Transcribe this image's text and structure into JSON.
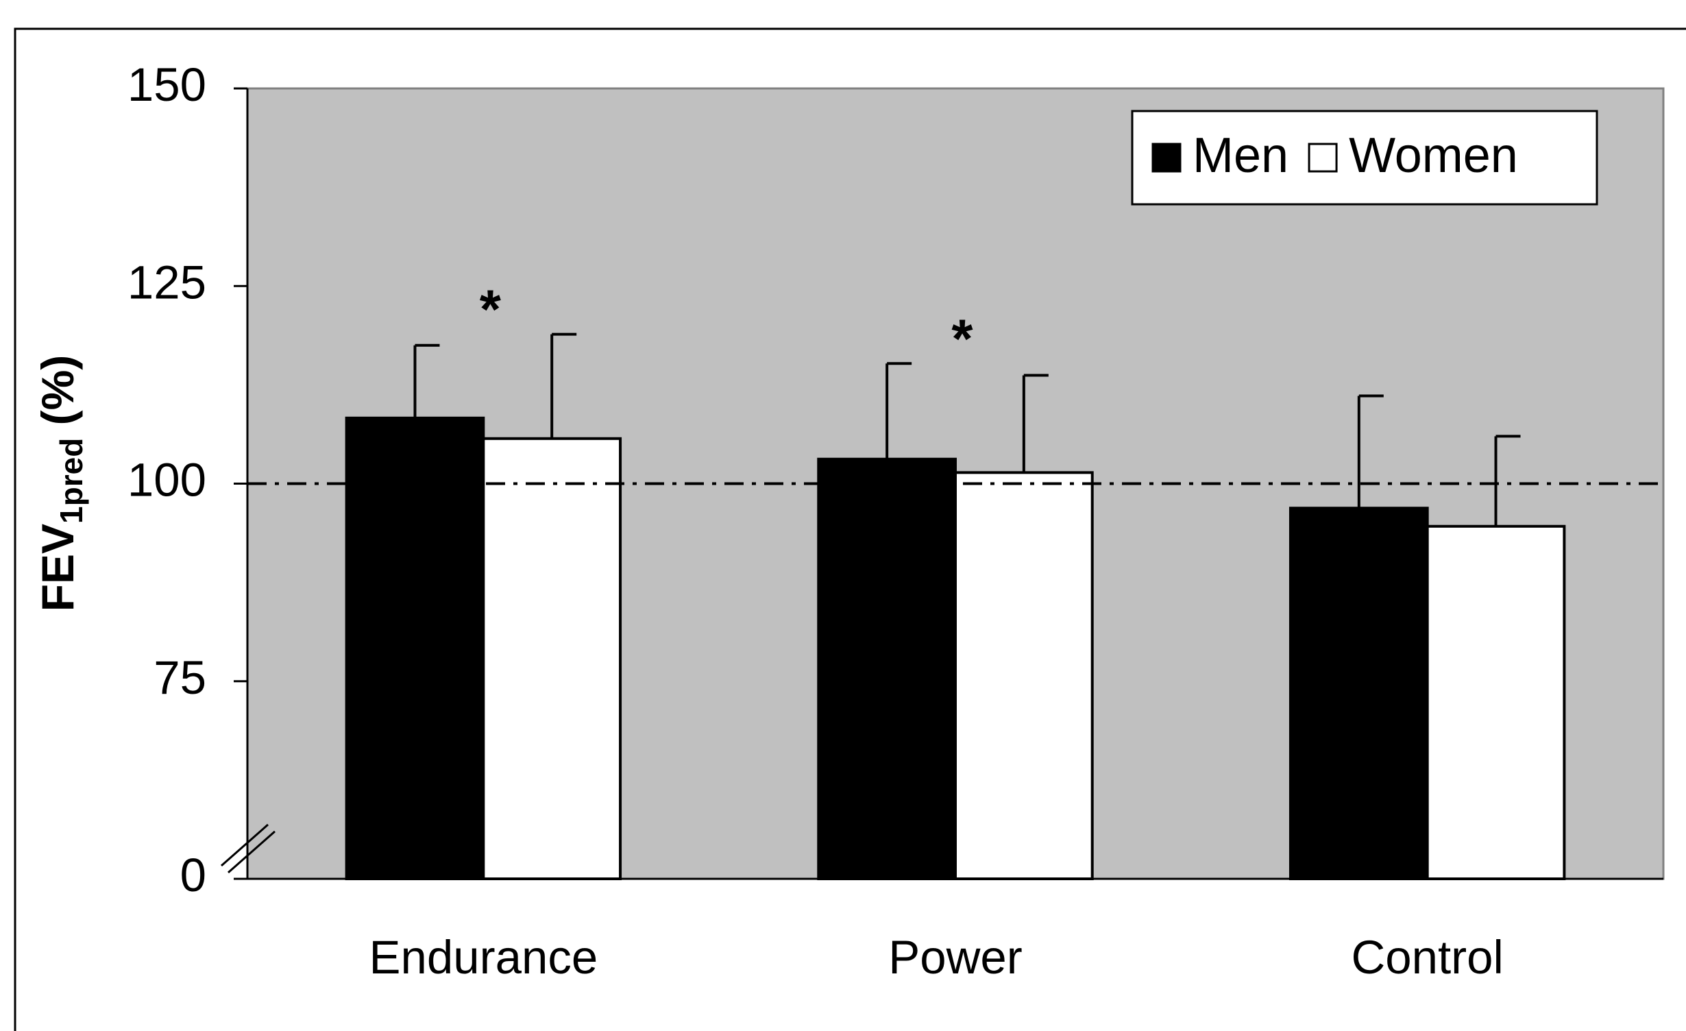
{
  "chart_data": {
    "type": "bar",
    "categories": [
      "Endurance",
      "Power",
      "Control"
    ],
    "series": [
      {
        "name": "Men",
        "color": "#000000",
        "values": [
          108.3,
          103.1,
          96.9
        ],
        "errors": [
          9.2,
          12.1,
          14.2
        ]
      },
      {
        "name": "Women",
        "color": "#ffffff",
        "values": [
          105.7,
          101.4,
          94.6
        ],
        "errors": [
          13.2,
          12.3,
          11.4
        ]
      }
    ],
    "annotations": [
      "*",
      "*",
      null
    ],
    "ylabel": {
      "main": "FEV",
      "sub": "1pred",
      "suffix": " (%)"
    },
    "ylim": [
      0,
      150
    ],
    "yticks": [
      0,
      75,
      100,
      125,
      150
    ],
    "ybreak": true,
    "reference_line": 100,
    "plot_background": "#c0c0c0",
    "legend": "upper right"
  }
}
